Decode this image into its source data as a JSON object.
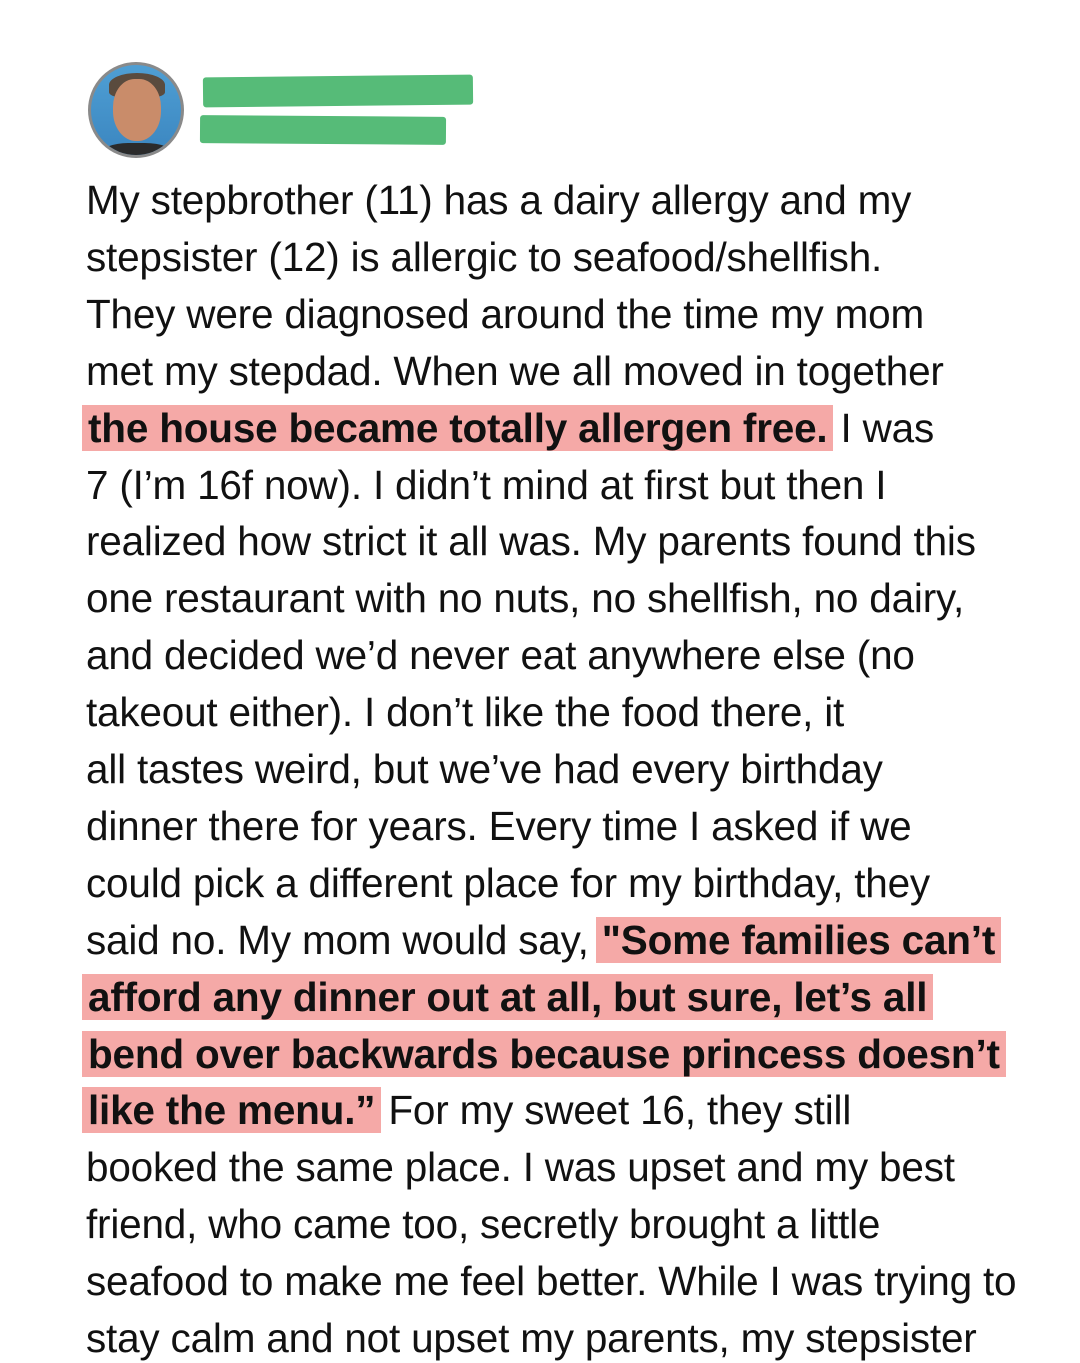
{
  "author": {
    "name_redacted": true,
    "avatar": "profile-photo"
  },
  "colors": {
    "highlight": "#f5a9a7",
    "redaction": "#56bb78"
  },
  "post": {
    "lines": [
      [
        {
          "t": "My stepbrother (11) has a dairy allergy and my",
          "hl": false
        }
      ],
      [
        {
          "t": "stepsister (12) is allergic to seafood/shellfish.",
          "hl": false
        }
      ],
      [
        {
          "t": "They were diagnosed around the time my mom",
          "hl": false
        }
      ],
      [
        {
          "t": "met my stepdad. When we all moved in together",
          "hl": false
        }
      ],
      [
        {
          "t": "the house became totally allergen free.",
          "hl": true
        },
        {
          "t": " I was",
          "hl": false
        }
      ],
      [
        {
          "t": "7 (I’m 16f now). I didn’t mind at first but then I",
          "hl": false
        }
      ],
      [
        {
          "t": "realized how strict it all was. My parents found this",
          "hl": false
        }
      ],
      [
        {
          "t": "one restaurant with no nuts, no shellfish, no dairy,",
          "hl": false
        }
      ],
      [
        {
          "t": "and decided we’d never eat anywhere else (no",
          "hl": false
        }
      ],
      [
        {
          "t": "takeout either). I don’t like the food there, it",
          "hl": false
        }
      ],
      [
        {
          "t": "all tastes weird, but we’ve had every birthday",
          "hl": false
        }
      ],
      [
        {
          "t": "dinner there for years. Every time I asked if we",
          "hl": false
        }
      ],
      [
        {
          "t": "could pick a different place for my birthday, they",
          "hl": false
        }
      ],
      [
        {
          "t": "said no. My mom would say, ",
          "hl": false
        },
        {
          "t": "\"Some families can’t",
          "hl": true
        }
      ],
      [
        {
          "t": "afford any dinner out at all, but sure, let’s all",
          "hl": true
        }
      ],
      [
        {
          "t": "bend over backwards because princess doesn’t",
          "hl": true
        }
      ],
      [
        {
          "t": "like the menu.”",
          "hl": true
        },
        {
          "t": " For my sweet 16, they still",
          "hl": false
        }
      ],
      [
        {
          "t": "booked the same place. I was upset and my best",
          "hl": false
        }
      ],
      [
        {
          "t": "friend, who came too, secretly brought a little",
          "hl": false
        }
      ],
      [
        {
          "t": "seafood to make me feel better. While I was trying to",
          "hl": false
        }
      ],
      [
        {
          "t": "stay calm and not upset my parents, my stepsister",
          "hl": false
        }
      ]
    ]
  }
}
